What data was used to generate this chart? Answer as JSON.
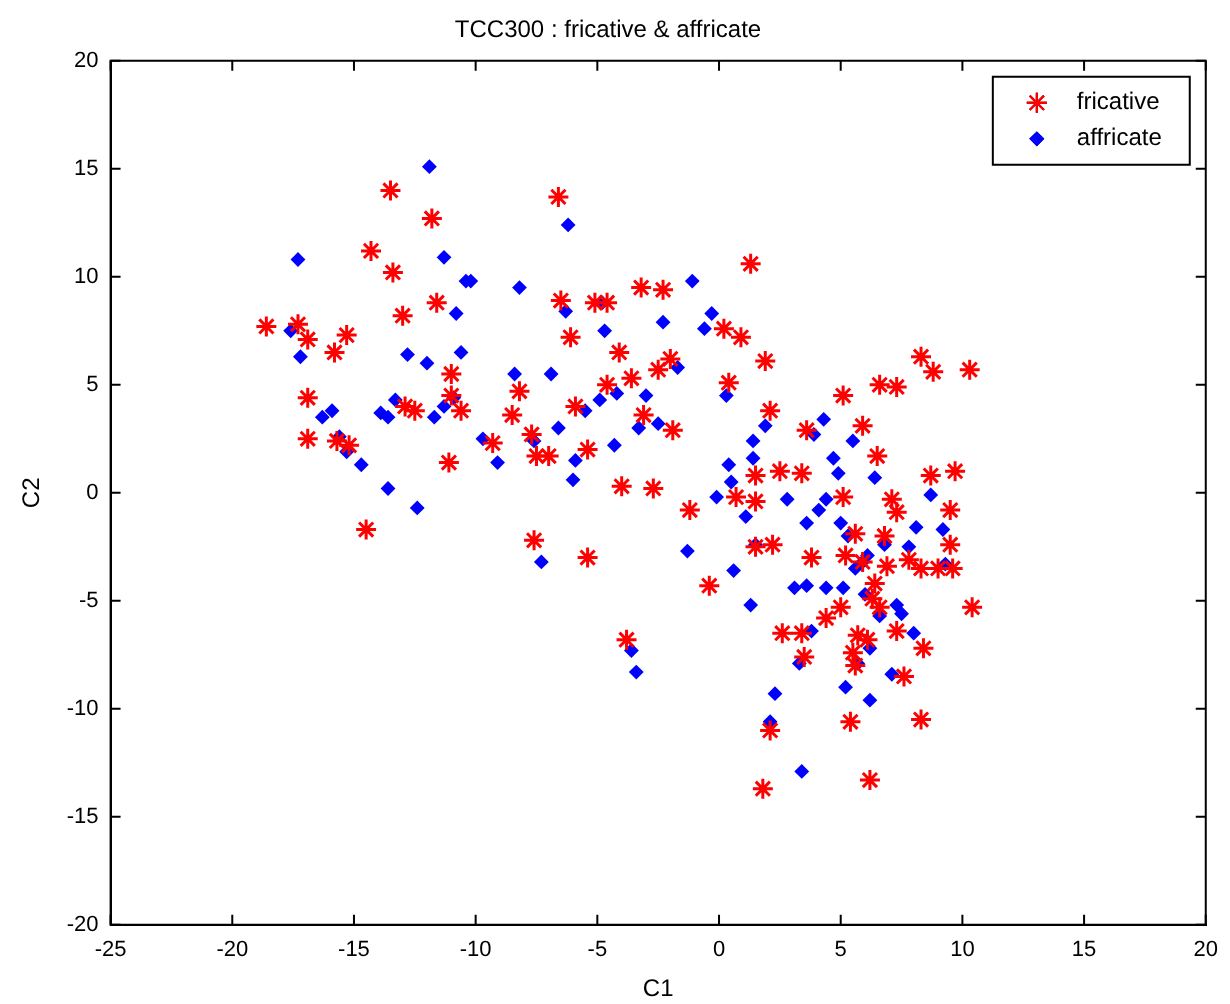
{
  "chart_data": {
    "type": "scatter",
    "title": "TCC300 : fricative & affricate",
    "xlabel": "C1",
    "ylabel": "C2",
    "xlim": [
      -25,
      20
    ],
    "xticks": [
      -25,
      -20,
      -15,
      -10,
      -5,
      0,
      5,
      10,
      15,
      20
    ],
    "ylim": [
      -20,
      20
    ],
    "yticks": [
      -20,
      -15,
      -10,
      -5,
      0,
      5,
      10,
      15,
      20
    ],
    "grid": false,
    "legend": "top right",
    "series": [
      {
        "name": "fricative",
        "color": "#ff0000",
        "marker": "cross",
        "x": [
          -18.6,
          -17.3,
          -16.9,
          -16.9,
          -16.9,
          -15.8,
          -15.7,
          -15.3,
          -15.2,
          -14.5,
          -14.3,
          -13.5,
          -13.4,
          -13.0,
          -12.9,
          -12.5,
          -11.8,
          -11.6,
          -11.0,
          -11.1,
          -11.0,
          -10.6,
          -9.3,
          -8.5,
          -8.2,
          -7.7,
          -7.5,
          -7.6,
          -7.0,
          -6.6,
          -6.1,
          -5.9,
          -6.5,
          -5.4,
          -5.4,
          -5.1,
          -4.6,
          -4.6,
          -4.1,
          -4.0,
          -3.6,
          -3.2,
          -3.1,
          -2.7,
          -2.5,
          -2.0,
          -1.9,
          -2.3,
          -1.2,
          -0.4,
          0.2,
          0.4,
          0.7,
          1.3,
          0.9,
          1.5,
          1.5,
          1.9,
          2.1,
          1.5,
          2.2,
          2.5,
          3.4,
          3.6,
          5.1,
          5.1,
          5.9,
          6.6,
          6.5,
          7.1,
          7.3,
          8.3,
          8.8,
          8.7,
          9.7,
          10.3,
          10.4,
          3.8,
          5.2,
          5.6,
          5.9,
          6.4,
          6.9,
          7.3,
          7.8,
          8.3,
          9.0,
          9.5,
          9.6,
          9.5,
          5.0,
          5.7,
          6.1,
          6.3,
          6.6,
          7.3,
          3.4,
          2.6,
          5.5,
          5.4,
          8.3,
          6.2,
          1.8,
          2.1,
          5.6,
          7.6,
          8.4,
          -3.8,
          4.4,
          3.5,
          6.8
        ],
        "values": [
          7.7,
          7.8,
          7.1,
          4.4,
          2.5,
          6.5,
          2.4,
          7.3,
          2.2,
          -1.7,
          11.2,
          14.0,
          10.2,
          8.2,
          4.0,
          3.8,
          12.7,
          8.8,
          5.5,
          1.4,
          4.5,
          3.8,
          2.3,
          3.6,
          4.7,
          2.7,
          1.7,
          -2.2,
          1.7,
          13.7,
          7.2,
          4.0,
          8.9,
          2.0,
          -3.0,
          8.8,
          8.8,
          5.0,
          6.5,
          0.3,
          5.3,
          9.5,
          3.6,
          0.2,
          5.7,
          6.2,
          2.9,
          9.4,
          -0.8,
          -4.3,
          7.6,
          5.1,
          -0.2,
          10.6,
          7.2,
          -0.4,
          0.8,
          6.1,
          3.8,
          -2.5,
          -2.4,
          1.0,
          0.9,
          2.9,
          -0.2,
          4.5,
          3.1,
          5.0,
          1.7,
          -0.3,
          4.9,
          6.3,
          5.6,
          0.8,
          1.0,
          5.7,
          -5.3,
          -3.0,
          -2.9,
          -1.9,
          -3.2,
          -4.2,
          -3.4,
          -0.9,
          -3.1,
          -3.5,
          -3.5,
          -0.8,
          -3.5,
          -2.4,
          -5.3,
          -6.6,
          -6.8,
          -4.9,
          -5.3,
          -6.4,
          -6.5,
          -6.5,
          -7.4,
          -10.6,
          -10.5,
          -13.3,
          -13.7,
          -11.0,
          -8.0,
          -8.5,
          -7.2,
          -6.8,
          -5.8,
          -7.6,
          -2.0
        ]
      },
      {
        "name": "affricate",
        "color": "#0000ff",
        "marker": "diamond",
        "x": [
          -17.3,
          -17.6,
          -17.2,
          -16.3,
          -15.9,
          -15.6,
          -15.3,
          -14.7,
          -13.9,
          -13.6,
          -13.6,
          -13.3,
          -12.8,
          -12.4,
          -12.0,
          -11.9,
          -11.7,
          -11.3,
          -11.3,
          -10.9,
          -10.8,
          -10.6,
          -10.4,
          -10.2,
          -9.7,
          -9.1,
          -8.4,
          -8.2,
          -7.6,
          -7.3,
          -6.9,
          -6.6,
          -6.2,
          -6.3,
          -6.0,
          -5.9,
          -5.5,
          -4.8,
          -4.9,
          -4.7,
          -4.3,
          -4.2,
          -3.6,
          -3.4,
          -3.3,
          -3.0,
          -2.5,
          -2.3,
          -1.7,
          -1.3,
          -1.1,
          -0.6,
          -0.3,
          -0.1,
          0.4,
          0.3,
          0.5,
          0.6,
          1.1,
          1.3,
          1.4,
          1.5,
          1.9,
          2.1,
          2.3,
          2.8,
          3.1,
          3.3,
          3.4,
          3.6,
          3.8,
          3.9,
          4.1,
          4.3,
          4.4,
          4.4,
          4.7,
          4.9,
          5.0,
          5.1,
          5.2,
          5.3,
          5.5,
          5.6,
          5.7,
          5.9,
          6.0,
          6.1,
          6.2,
          6.2,
          6.4,
          6.6,
          6.8,
          7.1,
          7.3,
          7.5,
          7.8,
          8.0,
          8.7,
          9.2,
          9.3,
          8.1,
          1.4,
          3.6
        ],
        "values": [
          10.8,
          7.5,
          6.3,
          3.5,
          3.8,
          2.6,
          1.9,
          1.3,
          3.7,
          3.5,
          0.2,
          4.3,
          6.4,
          -0.7,
          6.0,
          15.1,
          3.5,
          4.0,
          10.9,
          4.4,
          8.3,
          6.5,
          9.8,
          9.8,
          2.5,
          1.4,
          5.5,
          9.5,
          2.4,
          -3.2,
          5.5,
          3.0,
          12.4,
          8.4,
          0.6,
          1.5,
          3.8,
          8.8,
          4.3,
          7.5,
          2.2,
          4.6,
          -7.3,
          -8.3,
          3.0,
          4.5,
          3.2,
          7.9,
          5.8,
          -2.7,
          9.8,
          7.6,
          8.3,
          -0.2,
          1.3,
          4.5,
          0.5,
          -3.6,
          -1.1,
          -5.2,
          2.4,
          -2.4,
          3.1,
          -10.6,
          -9.3,
          -0.3,
          -4.4,
          -7.9,
          -12.9,
          -4.3,
          -6.4,
          2.7,
          -0.8,
          3.4,
          -0.3,
          -4.4,
          1.6,
          0.9,
          -1.4,
          -4.4,
          -9.0,
          -2.0,
          2.4,
          -3.5,
          -7.9,
          -3.2,
          -4.7,
          -2.9,
          -7.2,
          -9.6,
          0.7,
          -5.7,
          -2.4,
          -8.4,
          -5.2,
          -5.6,
          -2.5,
          -6.5,
          -0.1,
          -1.7,
          -3.3,
          -1.6,
          1.6,
          -1.4
        ]
      }
    ]
  }
}
